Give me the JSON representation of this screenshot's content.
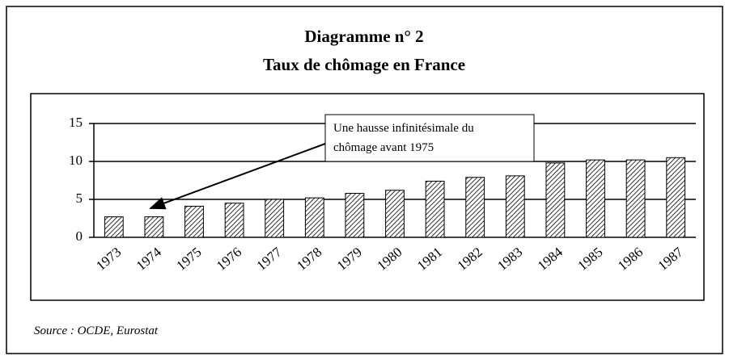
{
  "chart_data": {
    "type": "bar",
    "title": "Diagramme n° 2",
    "subtitle": "Taux de chômage en France",
    "categories": [
      "1973",
      "1974",
      "1975",
      "1976",
      "1977",
      "1978",
      "1979",
      "1980",
      "1981",
      "1982",
      "1983",
      "1984",
      "1985",
      "1986",
      "1987"
    ],
    "values": [
      2.7,
      2.7,
      4.1,
      4.5,
      5.0,
      5.2,
      5.8,
      6.2,
      7.4,
      7.9,
      8.1,
      9.8,
      10.2,
      10.2,
      10.5
    ],
    "color": "#000000",
    "ylim": [
      0,
      15
    ],
    "yticks": [
      0,
      5,
      10,
      15
    ],
    "grid": true,
    "annotation": [
      "Une hausse infinitésimale du",
      "chômage avant 1975"
    ],
    "source": "Source : OCDE, Eurostat"
  }
}
